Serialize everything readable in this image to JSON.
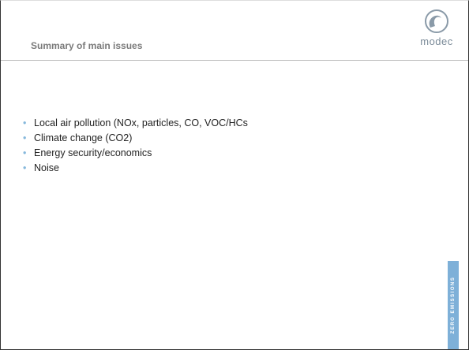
{
  "header": {
    "title": "Summary of main issues",
    "logo": "modec"
  },
  "bullets": [
    "Local air pollution (NOx, particles, CO, VOC/HCs",
    "Climate change (CO2)",
    "Energy security/economics",
    "Noise"
  ],
  "side_banner": "ZERO EMISSIONS"
}
